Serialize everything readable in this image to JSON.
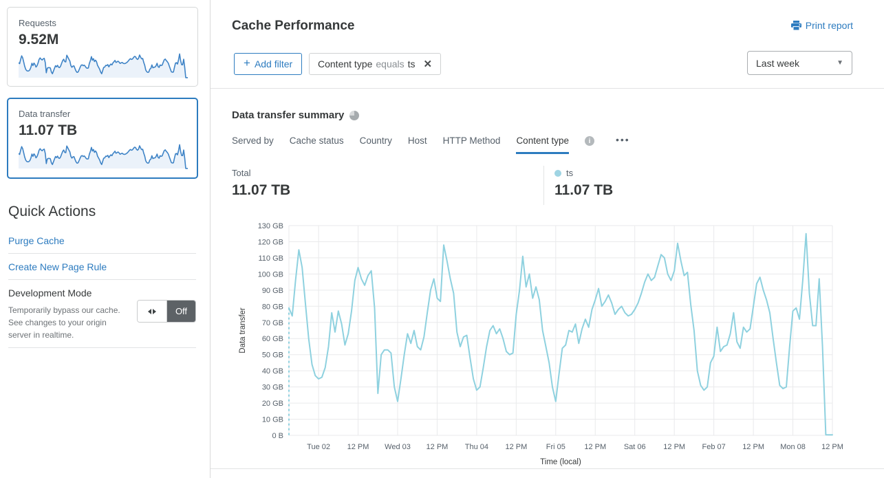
{
  "colors": {
    "accent": "#2c7bbf",
    "chart_line": "#8ed1df",
    "grid": "#e9eaeb",
    "sparkline_stroke": "#3e83c6",
    "sparkline_fill": "#ebf2fa",
    "toggle_off_bg": "#5d6266"
  },
  "sidebar": {
    "cards": [
      {
        "label": "Requests",
        "value": "9.52M",
        "selected": false
      },
      {
        "label": "Data transfer",
        "value": "11.07 TB",
        "selected": true
      }
    ],
    "quick_actions": {
      "title": "Quick Actions",
      "links": [
        {
          "label": "Purge Cache"
        },
        {
          "label": "Create New Page Rule"
        }
      ],
      "dev_mode": {
        "title": "Development Mode",
        "description": "Temporarily bypass our cache. See changes to your origin server in realtime.",
        "toggle_state": "Off"
      }
    }
  },
  "header": {
    "title": "Cache Performance",
    "print_label": "Print report",
    "add_filter": {
      "plus": "+",
      "label": "Add filter"
    },
    "filter_chip": {
      "field": "Content type",
      "operator": "equals",
      "value": "ts",
      "close": "✕"
    },
    "time_range": "Last week",
    "caret": "▼"
  },
  "summary": {
    "title": "Data transfer summary",
    "tabs": [
      {
        "label": "Served by",
        "active": false
      },
      {
        "label": "Cache status",
        "active": false
      },
      {
        "label": "Country",
        "active": false
      },
      {
        "label": "Host",
        "active": false
      },
      {
        "label": "HTTP Method",
        "active": false
      },
      {
        "label": "Content type",
        "active": true
      }
    ],
    "info_icon": "i",
    "more_icon": "•••",
    "stats": [
      {
        "label": "Total",
        "value": "11.07 TB"
      },
      {
        "label": "ts",
        "value": "11.07 TB",
        "dot_color": "#9fd4e3"
      }
    ]
  },
  "chart_data": {
    "type": "line",
    "xlabel": "Time (local)",
    "ylabel": "Data transfer",
    "ylim": [
      0,
      130
    ],
    "grid": true,
    "legend_position": "above-right",
    "yticks": [
      "0 B",
      "10 GB",
      "20 GB",
      "30 GB",
      "40 GB",
      "50 GB",
      "60 GB",
      "70 GB",
      "80 GB",
      "90 GB",
      "100 GB",
      "110 GB",
      "120 GB",
      "130 GB"
    ],
    "xticks": [
      "Tue 02",
      "12 PM",
      "Wed 03",
      "12 PM",
      "Thu 04",
      "12 PM",
      "Fri 05",
      "12 PM",
      "Sat 06",
      "12 PM",
      "Feb 07",
      "12 PM",
      "Mon 08",
      "12 PM"
    ],
    "tick_start_index": 9,
    "tick_step_hours": 12,
    "series": [
      {
        "name": "ts",
        "unit": "GB",
        "color": "#8ed1df",
        "values": [
          79,
          74,
          96,
          115,
          104,
          82,
          60,
          44,
          37,
          35,
          36,
          42,
          55,
          76,
          64,
          77,
          69,
          56,
          63,
          77,
          96,
          104,
          97,
          93,
          99,
          102,
          79,
          26,
          50,
          53,
          53,
          51,
          30,
          21,
          35,
          50,
          63,
          57,
          65,
          55,
          53,
          61,
          76,
          90,
          97,
          85,
          83,
          118,
          108,
          97,
          88,
          64,
          55,
          61,
          62,
          48,
          35,
          28,
          30,
          42,
          55,
          65,
          68,
          63,
          66,
          60,
          52,
          50,
          51,
          75,
          90,
          111,
          92,
          100,
          85,
          92,
          84,
          65,
          55,
          45,
          30,
          21,
          38,
          54,
          56,
          65,
          64,
          69,
          57,
          66,
          72,
          67,
          78,
          84,
          91,
          80,
          83,
          87,
          82,
          75,
          78,
          80,
          76,
          74,
          75,
          78,
          82,
          88,
          95,
          100,
          96,
          98,
          105,
          112,
          110,
          100,
          96,
          102,
          119,
          108,
          99,
          101,
          81,
          65,
          40,
          31,
          28,
          30,
          45,
          49,
          67,
          52,
          55,
          56,
          63,
          76,
          58,
          54,
          67,
          64,
          66,
          80,
          94,
          98,
          90,
          84,
          76,
          60,
          45,
          31,
          29,
          30,
          55,
          77,
          79,
          72,
          96,
          125,
          88,
          68,
          68,
          97,
          55,
          0.4,
          0.3,
          0.3
        ]
      }
    ]
  }
}
